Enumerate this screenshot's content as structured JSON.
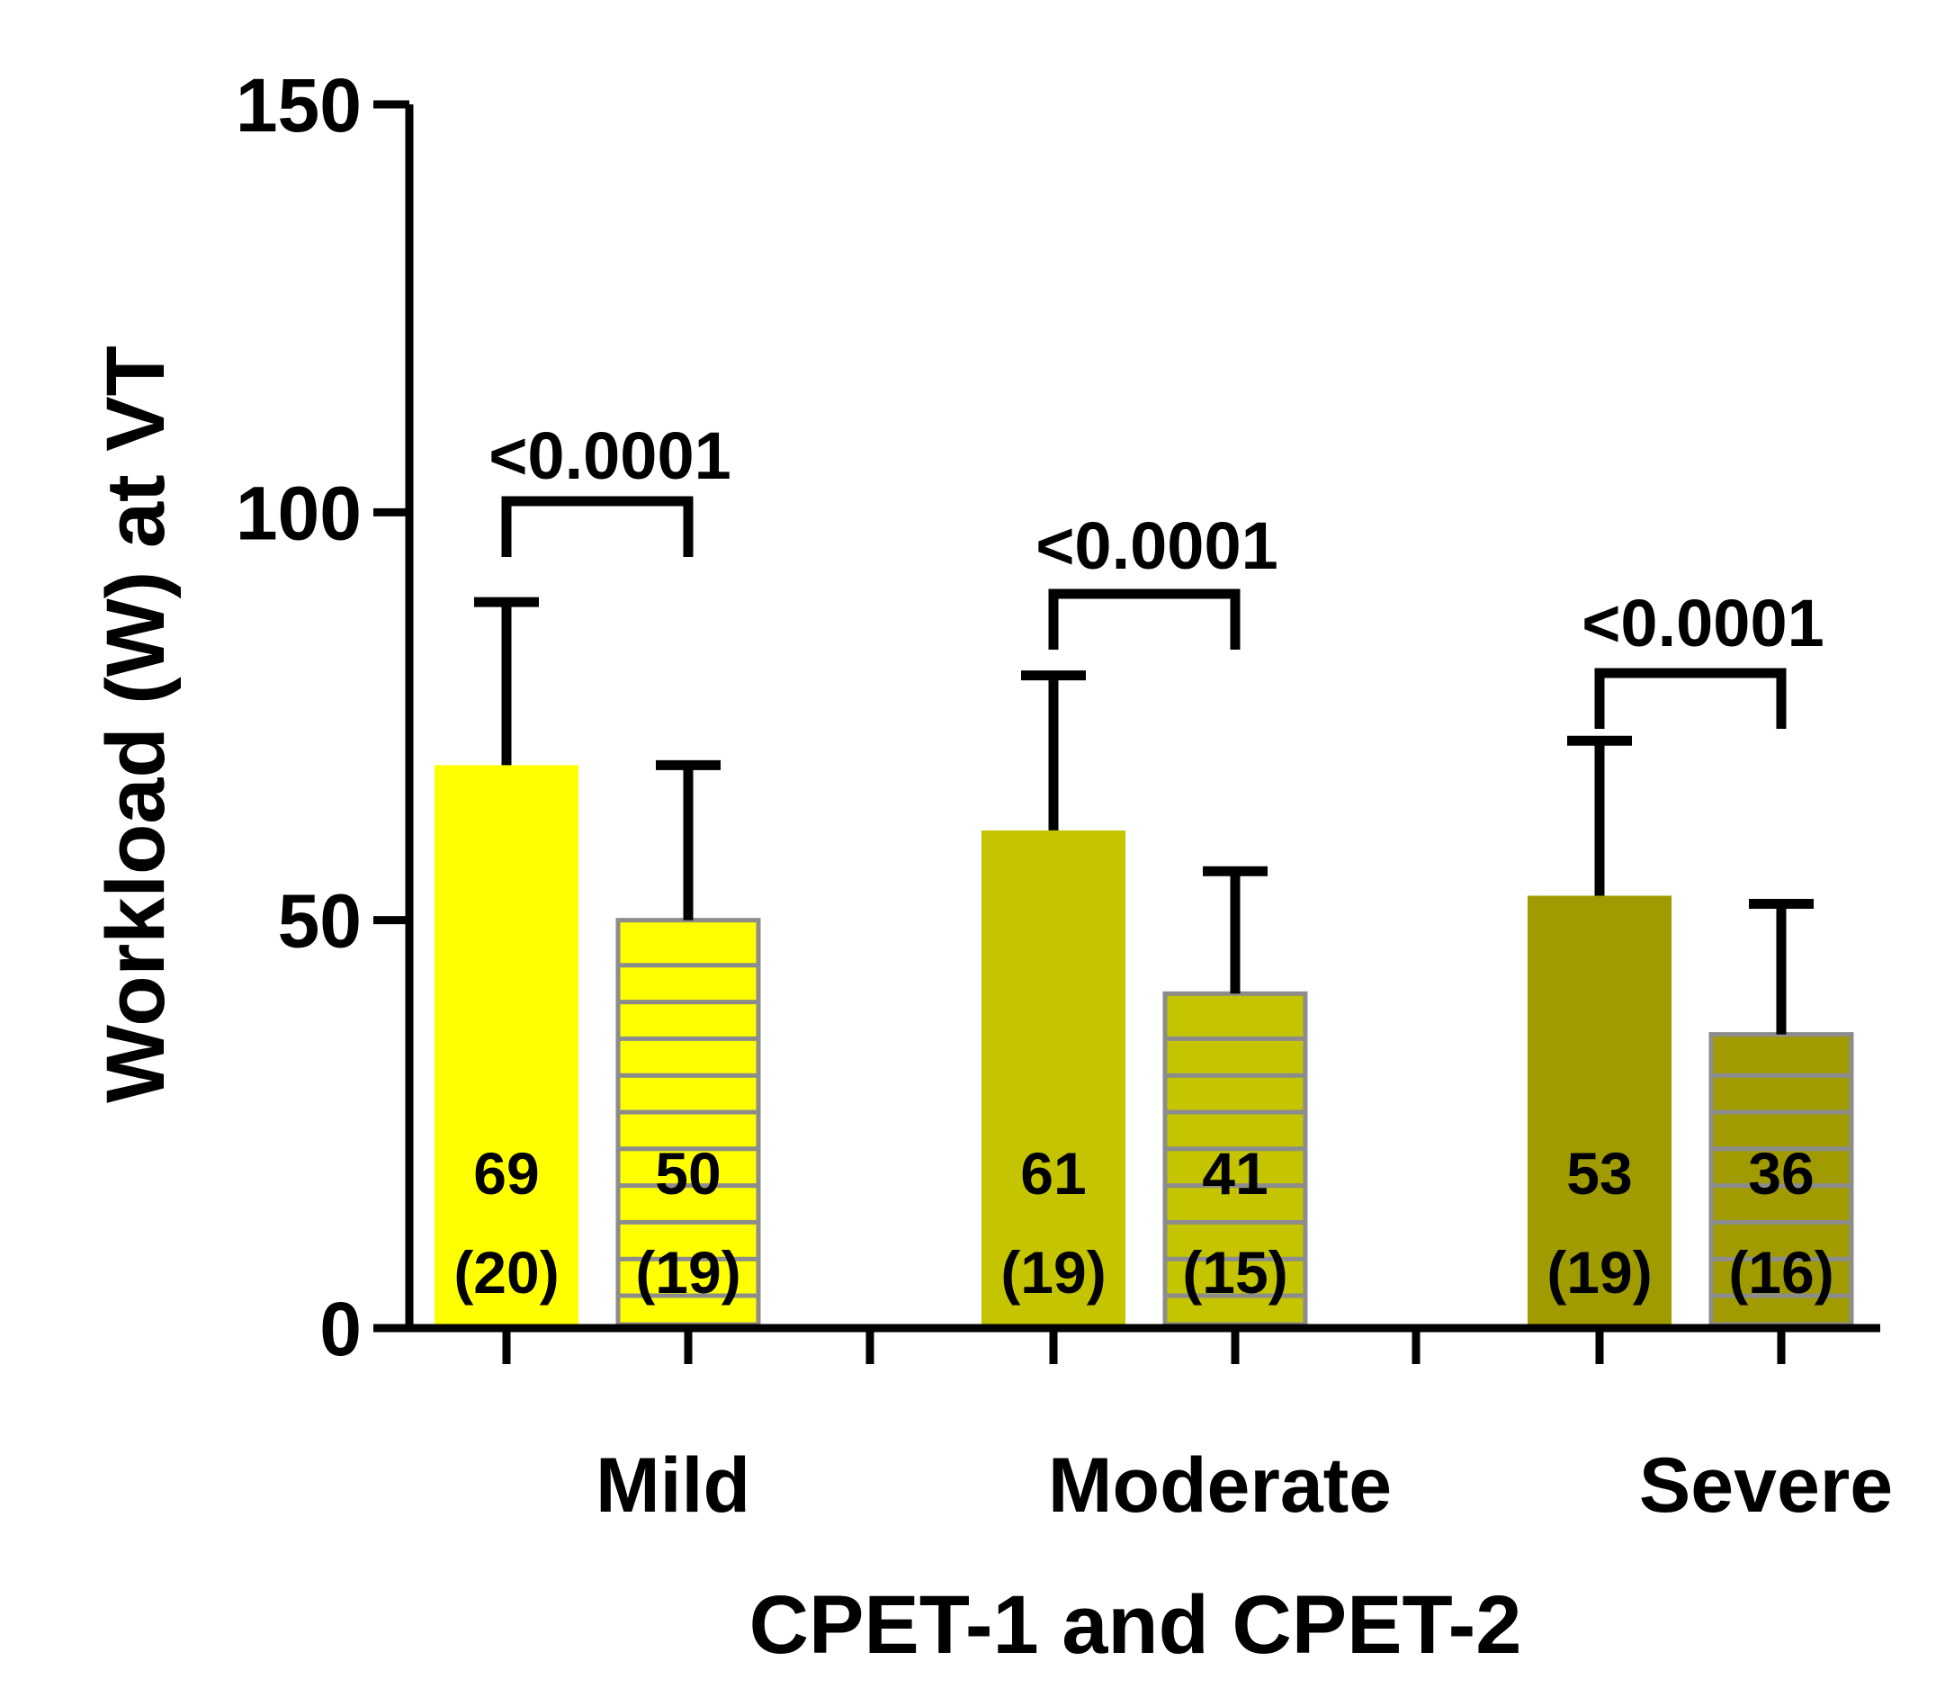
{
  "chart_data": {
    "type": "bar",
    "ylabel": "Workload (W) at VT",
    "xlabel": "CPET-1 and CPET-2",
    "ylim": [
      0,
      150
    ],
    "yticks": [
      "0",
      "50",
      "100",
      "150"
    ],
    "categories": [
      "Mild",
      "Moderate",
      "Severe"
    ],
    "series": [
      {
        "means": [
          69,
          61,
          53
        ],
        "sd": [
          20,
          19,
          19
        ],
        "labels": [
          "69",
          "61",
          "53"
        ],
        "sd_labels": [
          "(20)",
          "(19)",
          "(19)"
        ],
        "pattern": "solid"
      },
      {
        "means": [
          50,
          41,
          36
        ],
        "sd": [
          19,
          15,
          16
        ],
        "labels": [
          "50",
          "41",
          "36"
        ],
        "sd_labels": [
          "(19)",
          "(15)",
          "(16)"
        ],
        "pattern": "horizontal-stripes"
      }
    ],
    "group_colors": [
      "#ffff00",
      "#c4c400",
      "#a09b00"
    ],
    "stripe_color": "#8c8c8c",
    "annotations": [
      {
        "group": 0,
        "text": "<0.0001"
      },
      {
        "group": 1,
        "text": "<0.0001"
      },
      {
        "group": 2,
        "text": "<0.0001"
      }
    ]
  }
}
